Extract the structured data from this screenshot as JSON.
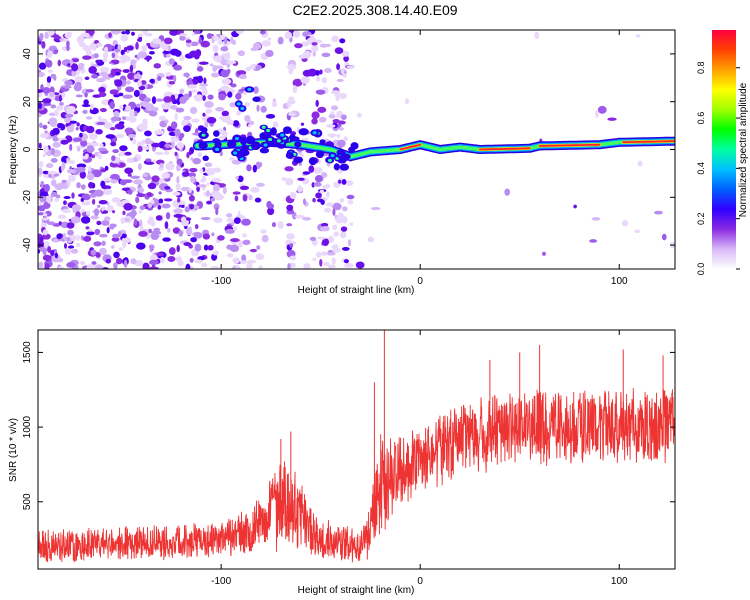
{
  "page": {
    "title": "C2E2.2025.308.14.40.E09"
  },
  "chart_data": [
    {
      "type": "heatmap",
      "title": "C2E2.2025.308.14.40.E09",
      "xlabel": "Height of straight line (km)",
      "ylabel": "Frequency (Hz)",
      "xlim": [
        -192,
        128
      ],
      "ylim": [
        -50,
        50
      ],
      "xticks": [
        -100,
        0,
        100
      ],
      "yticks": [
        -40,
        -20,
        0,
        20,
        40
      ],
      "colorbar": {
        "label": "Normalized spectral amplitude",
        "range": [
          0.0,
          0.95
        ],
        "ticks": [
          0.0,
          0.2,
          0.4,
          0.6,
          0.8
        ],
        "colors": [
          "#ffffff",
          "#d8b8f8",
          "#8a2be2",
          "#3000ff",
          "#0060ff",
          "#00c0ff",
          "#00ffa0",
          "#00ff00",
          "#a0ff00",
          "#ffff00",
          "#ffa000",
          "#ff4000",
          "#ff0040"
        ]
      },
      "ridge": [
        {
          "x": -110,
          "freq": 1.5
        },
        {
          "x": -90,
          "freq": 2.5
        },
        {
          "x": -75,
          "freq": 3
        },
        {
          "x": -60,
          "freq": 2
        },
        {
          "x": -45,
          "freq": 0
        },
        {
          "x": -35,
          "freq": -3
        },
        {
          "x": -25,
          "freq": -1
        },
        {
          "x": -10,
          "freq": 0
        },
        {
          "x": 0,
          "freq": 2
        },
        {
          "x": 10,
          "freq": 0
        },
        {
          "x": 20,
          "freq": 1
        },
        {
          "x": 30,
          "freq": 0
        },
        {
          "x": 55,
          "freq": 0.5
        },
        {
          "x": 60,
          "freq": 1.5
        },
        {
          "x": 90,
          "freq": 2
        },
        {
          "x": 100,
          "freq": 3
        },
        {
          "x": 128,
          "freq": 3.5
        }
      ]
    },
    {
      "type": "line",
      "title": "",
      "xlabel": "Height of straight line (km)",
      "ylabel": "SNR (10 * v/v)",
      "xlim": [
        -192,
        128
      ],
      "ylim": [
        50,
        1650
      ],
      "xticks": [
        -100,
        0,
        100
      ],
      "yticks": [
        500,
        1000,
        1500
      ],
      "color": "#ee3333",
      "series": [
        {
          "name": "SNR",
          "x": [
            -192,
            -160,
            -130,
            -100,
            -85,
            -75,
            -70,
            -65,
            -60,
            -55,
            -50,
            -40,
            -30,
            -25,
            -22,
            -20,
            -18,
            -15,
            -10,
            0,
            10,
            20,
            40,
            60,
            80,
            100,
            110,
            128
          ],
          "mid": [
            200,
            220,
            230,
            250,
            300,
            430,
            500,
            460,
            400,
            320,
            260,
            230,
            210,
            300,
            500,
            700,
            550,
            650,
            700,
            780,
            850,
            930,
            990,
            1000,
            1000,
            1010,
            1010,
            1020
          ],
          "amp": [
            110,
            110,
            110,
            120,
            150,
            240,
            300,
            280,
            230,
            180,
            140,
            120,
            110,
            200,
            300,
            450,
            300,
            260,
            240,
            220,
            230,
            230,
            240,
            240,
            240,
            240,
            240,
            240
          ]
        }
      ],
      "peaks": [
        {
          "x": -18,
          "y": 1650
        },
        {
          "x": -23,
          "y": 1300
        },
        {
          "x": -65,
          "y": 970
        },
        {
          "x": -70,
          "y": 920
        },
        {
          "x": 60,
          "y": 1550
        },
        {
          "x": 50,
          "y": 1500
        },
        {
          "x": 102,
          "y": 1520
        },
        {
          "x": 122,
          "y": 1480
        },
        {
          "x": 35,
          "y": 1450
        }
      ]
    }
  ]
}
